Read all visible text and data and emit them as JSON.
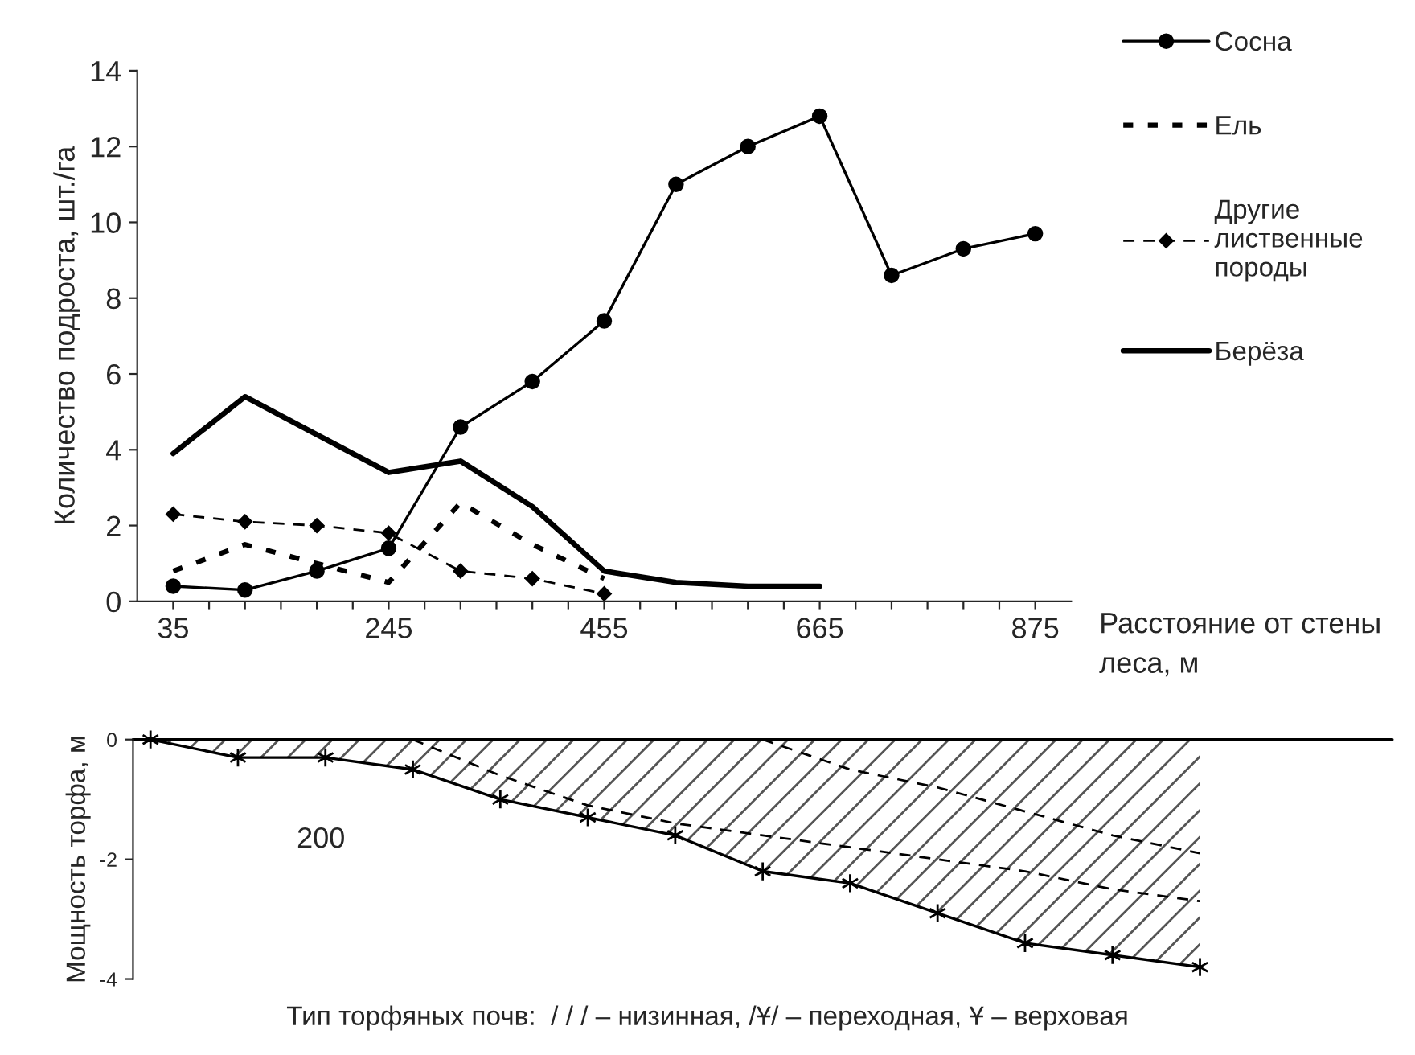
{
  "chart_data": [
    {
      "type": "line",
      "xlabel": "Расстояние от стены\nлеса, м",
      "ylabel": "Количество подроста, шт./га",
      "x": [
        35,
        105,
        175,
        245,
        315,
        385,
        455,
        525,
        595,
        665,
        735,
        805,
        875
      ],
      "series": [
        {
          "name": "Сосна",
          "color": "#000000",
          "marker": "circle",
          "line_style": "solid",
          "values": [
            0.4,
            0.3,
            0.8,
            1.4,
            4.6,
            5.8,
            7.4,
            11.0,
            12.0,
            12.8,
            8.6,
            9.3,
            9.7
          ]
        },
        {
          "name": "Ель",
          "color": "#000000",
          "marker": "none",
          "line_style": "dotted",
          "values": [
            0.8,
            1.5,
            1.0,
            0.5,
            2.6,
            1.5,
            0.6,
            null,
            null,
            null,
            null,
            null,
            null
          ]
        },
        {
          "name": "Другие\nлиственные\nпороды",
          "color": "#000000",
          "marker": "diamond",
          "line_style": "dashed",
          "values": [
            2.3,
            2.1,
            2.0,
            1.8,
            0.8,
            0.6,
            0.2,
            null,
            null,
            null,
            null,
            null,
            null
          ]
        },
        {
          "name": "Берёза",
          "color": "#000000",
          "marker": "none",
          "line_style": "solid",
          "values": [
            3.9,
            5.4,
            4.4,
            3.4,
            3.7,
            2.5,
            0.8,
            0.5,
            0.4,
            0.4,
            null,
            null,
            null
          ]
        }
      ],
      "xlim": [
        0,
        910
      ],
      "xticks": [
        35,
        {
          "value": 70,
          "label": null
        },
        {
          "value": 105,
          "label": null
        },
        {
          "value": 140,
          "label": null
        },
        {
          "value": 175,
          "label": null
        },
        {
          "value": 210,
          "label": null
        },
        245,
        {
          "value": 280,
          "label": null
        },
        {
          "value": 315,
          "label": null
        },
        {
          "value": 350,
          "label": null
        },
        {
          "value": 385,
          "label": null
        },
        {
          "value": 420,
          "label": null
        },
        455,
        {
          "value": 490,
          "label": null
        },
        {
          "value": 525,
          "label": null
        },
        {
          "value": 560,
          "label": null
        },
        {
          "value": 595,
          "label": null
        },
        {
          "value": 630,
          "label": null
        },
        665,
        {
          "value": 700,
          "label": null
        },
        {
          "value": 735,
          "label": null
        },
        {
          "value": 770,
          "label": null
        },
        {
          "value": 805,
          "label": null
        },
        {
          "value": 840,
          "label": null
        },
        875
      ],
      "ylim": [
        0,
        14
      ],
      "yticks": [
        0,
        2,
        4,
        6,
        8,
        10,
        12,
        14
      ],
      "grid": false,
      "legend": "top right"
    },
    {
      "type": "line",
      "ylabel": "Мощность торфа, м",
      "categories": [
        null,
        null,
        null,
        null,
        null,
        null,
        null,
        null,
        null,
        null,
        null,
        null,
        null
      ],
      "series": [
        {
          "type": "area",
          "color": "#000000",
          "marker": "cross",
          "line_style": "solid",
          "values": [
            0,
            -0.3,
            -0.3,
            -0.5,
            -1.0,
            -1.3,
            -1.6,
            -2.2,
            -2.4,
            -2.9,
            -3.4,
            -3.6,
            -3.8
          ]
        },
        {
          "color": "#000000",
          "marker": "none",
          "line_style": "dashed",
          "values": [
            null,
            null,
            null,
            0,
            -0.6,
            -1.1,
            -1.4,
            -1.6,
            -1.8,
            -2.0,
            -2.2,
            -2.5,
            -2.7
          ]
        },
        {
          "color": "#000000",
          "marker": "none",
          "line_style": "dashed",
          "values": [
            null,
            null,
            null,
            null,
            null,
            null,
            null,
            0,
            -0.5,
            -0.8,
            -1.2,
            -1.6,
            -1.9
          ]
        }
      ],
      "ylim": [
        -4,
        0
      ],
      "yticks": [
        0,
        -2,
        -4
      ],
      "ref_lines": [
        {
          "axis": "y",
          "value": 0,
          "color": "#000000"
        }
      ],
      "annotations": [
        "200",
        "Тип торфяных почв:  / / / – низинная, /Ұ/ – переходная, Ұ – верховая"
      ],
      "grid": false,
      "legend": false
    }
  ]
}
